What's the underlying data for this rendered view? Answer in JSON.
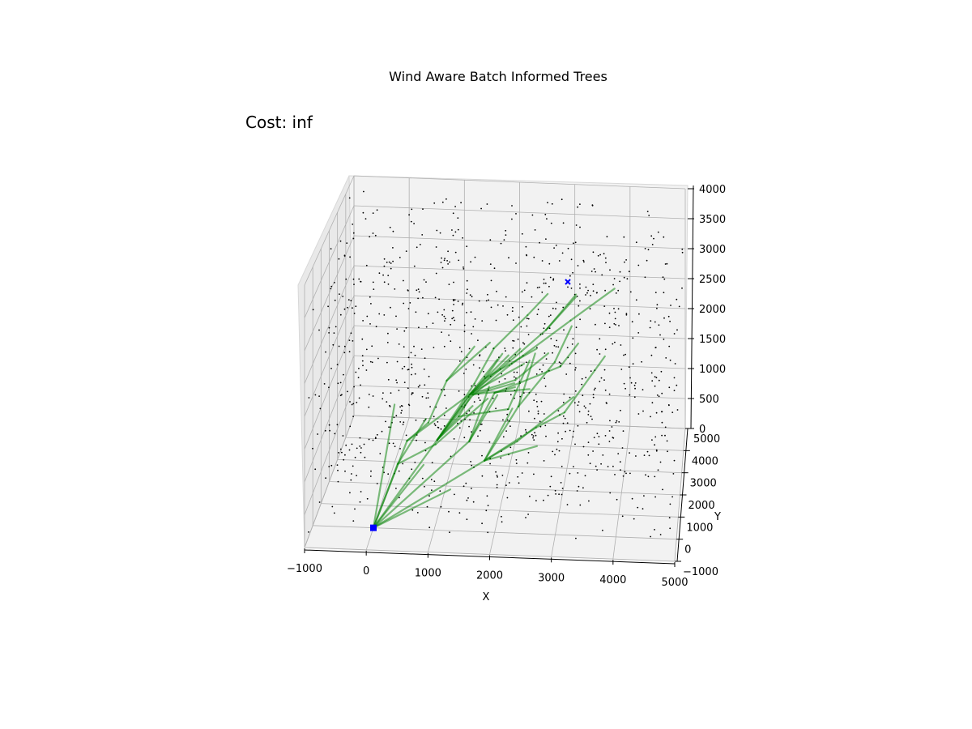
{
  "title": "Wind Aware Batch Informed Trees",
  "cost_label": "Cost: inf",
  "chart_data": {
    "type": "scatter3d",
    "title": "Wind Aware Batch Informed Trees",
    "annotation": "Cost: inf",
    "xlabel": "X",
    "ylabel": "Y",
    "zlabel": "",
    "xlim": [
      -1000,
      5000
    ],
    "ylim": [
      -1000,
      5000
    ],
    "zlim": [
      0,
      4000
    ],
    "x_ticks": [
      "−1000",
      "0",
      "1000",
      "2000",
      "3000",
      "4000",
      "5000"
    ],
    "y_ticks": [
      "−1000",
      "0",
      "1000",
      "2000",
      "3000",
      "4000",
      "5000"
    ],
    "z_ticks": [
      "0",
      "500",
      "1000",
      "1500",
      "2000",
      "2500",
      "3000",
      "3500",
      "4000"
    ],
    "grid": true,
    "start": {
      "x": 0,
      "y": 0,
      "z": 0,
      "marker": "square",
      "color": "#0000ff"
    },
    "goal": {
      "x": 3500,
      "y": 3500,
      "z": 2500,
      "marker": "x",
      "color": "#0000ff"
    },
    "samples": {
      "count": 1000,
      "color": "#000000",
      "marker": "dot",
      "distribution": "uniform in bounds"
    },
    "tree_edges": {
      "color": "#008000",
      "alpha": 0.5
    }
  },
  "colors": {
    "pane": "#f2f2f2",
    "grid": "#b0b0b0",
    "tree": "#008000",
    "samples": "#000000",
    "markers": "#0000ff"
  }
}
